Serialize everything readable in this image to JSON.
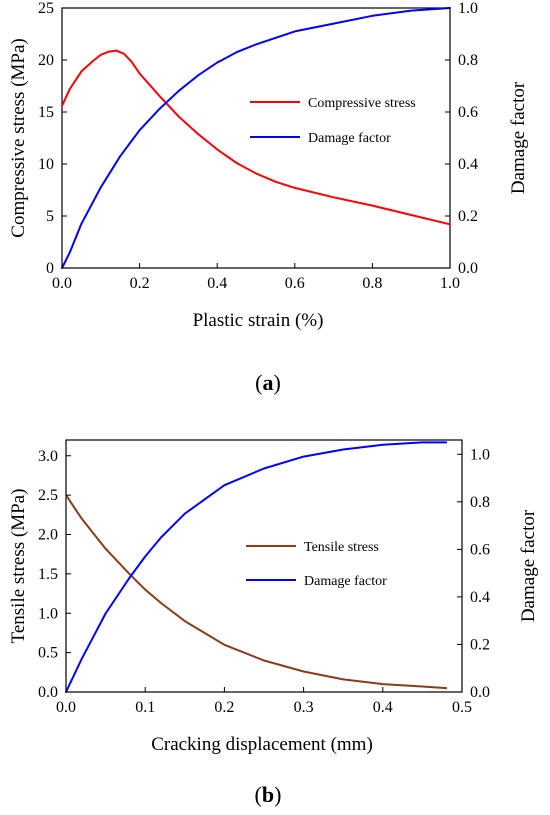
{
  "chart_data": [
    {
      "type": "line",
      "panel_label": "(a)",
      "xlabel": "Plastic strain (%)",
      "ylabel": "Compressive stress (MPa)",
      "y2label": "Damage factor",
      "xlim": [
        0,
        1.0
      ],
      "ylim": [
        0,
        25
      ],
      "y2lim": [
        0,
        1.0
      ],
      "xticks": [
        "0.0",
        "0.2",
        "0.4",
        "0.6",
        "0.8",
        "1.0"
      ],
      "yticks": [
        "0",
        "5",
        "10",
        "15",
        "20",
        "25"
      ],
      "y2ticks": [
        "0.0",
        "0.2",
        "0.4",
        "0.6",
        "0.8",
        "1.0"
      ],
      "grid": false,
      "legend_position": "right",
      "series": [
        {
          "name": "Compressive stress",
          "axis": "left",
          "color": "#ff0000",
          "x": [
            0,
            0.02,
            0.05,
            0.08,
            0.1,
            0.12,
            0.14,
            0.16,
            0.18,
            0.2,
            0.25,
            0.3,
            0.35,
            0.4,
            0.45,
            0.5,
            0.55,
            0.6,
            0.7,
            0.8,
            0.9,
            1.0
          ],
          "y": [
            15.6,
            17.2,
            18.9,
            19.9,
            20.5,
            20.8,
            20.9,
            20.6,
            19.8,
            18.7,
            16.6,
            14.6,
            12.9,
            11.4,
            10.1,
            9.1,
            8.3,
            7.7,
            6.8,
            6.0,
            5.1,
            4.2
          ]
        },
        {
          "name": "Damage factor",
          "axis": "right",
          "color": "#0000ff",
          "x": [
            0,
            0.02,
            0.05,
            0.1,
            0.15,
            0.2,
            0.25,
            0.3,
            0.35,
            0.4,
            0.45,
            0.5,
            0.6,
            0.7,
            0.8,
            0.9,
            1.0
          ],
          "y": [
            0,
            0.06,
            0.17,
            0.31,
            0.43,
            0.53,
            0.61,
            0.68,
            0.74,
            0.79,
            0.83,
            0.86,
            0.91,
            0.94,
            0.97,
            0.99,
            1.0
          ]
        }
      ]
    },
    {
      "type": "line",
      "panel_label": "(b)",
      "xlabel": "Cracking displacement (mm)",
      "ylabel": "Tensile stress (MPa)",
      "y2label": "Damage factor",
      "xlim": [
        0,
        0.5
      ],
      "ylim": [
        0,
        3.2
      ],
      "y2lim": [
        0,
        1.06
      ],
      "xticks": [
        "0.0",
        "0.1",
        "0.2",
        "0.3",
        "0.4",
        "0.5"
      ],
      "yticks": [
        "0.0",
        "0.5",
        "1.0",
        "1.5",
        "2.0",
        "2.5",
        "3.0"
      ],
      "y2ticks": [
        "0.0",
        "0.2",
        "0.4",
        "0.6",
        "0.8",
        "1.0"
      ],
      "grid": false,
      "legend_position": "right",
      "series": [
        {
          "name": "Tensile stress",
          "axis": "left",
          "color": "#8b3a1a",
          "x": [
            0,
            0.02,
            0.05,
            0.08,
            0.1,
            0.12,
            0.15,
            0.2,
            0.25,
            0.3,
            0.35,
            0.4,
            0.45,
            0.48
          ],
          "y": [
            2.5,
            2.2,
            1.82,
            1.5,
            1.3,
            1.13,
            0.9,
            0.6,
            0.4,
            0.26,
            0.16,
            0.1,
            0.07,
            0.05
          ]
        },
        {
          "name": "Damage factor",
          "axis": "right",
          "color": "#0000ff",
          "x": [
            0,
            0.02,
            0.05,
            0.08,
            0.1,
            0.12,
            0.15,
            0.2,
            0.25,
            0.3,
            0.35,
            0.4,
            0.45,
            0.48
          ],
          "y": [
            0,
            0.14,
            0.33,
            0.48,
            0.57,
            0.65,
            0.75,
            0.87,
            0.94,
            0.99,
            1.02,
            1.04,
            1.05,
            1.05
          ]
        }
      ]
    }
  ]
}
